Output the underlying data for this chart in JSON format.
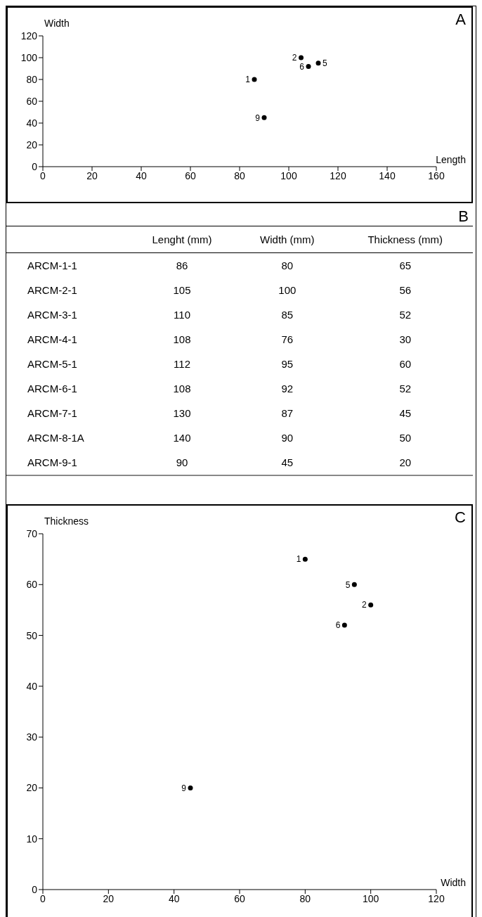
{
  "chart_data": [
    {
      "type": "scatter",
      "xlabel": "Length",
      "ylabel": "Width",
      "x": [
        86,
        105,
        112,
        108,
        90
      ],
      "values": [
        80,
        100,
        95,
        92,
        45
      ],
      "annotations": [
        "A",
        {
          "text": "1",
          "x": 86,
          "y": 80
        },
        {
          "text": "2",
          "x": 105,
          "y": 100
        },
        {
          "text": "5",
          "x": 112,
          "y": 95
        },
        {
          "text": "6",
          "x": 108,
          "y": 92
        },
        {
          "text": "9",
          "x": 90,
          "y": 45
        }
      ],
      "color": "#000000",
      "marker": "circle",
      "xlim": [
        0,
        160
      ],
      "xticks": [
        0,
        20,
        40,
        60,
        80,
        100,
        120,
        140,
        160
      ],
      "ylim": [
        0,
        120
      ],
      "yticks": [
        0,
        20,
        40,
        60,
        80,
        100,
        120
      ],
      "grid": false,
      "legend": false
    },
    {
      "type": "other",
      "title": "B",
      "categories": [
        "ARCM-1-1",
        "ARCM-2-1",
        "ARCM-3-1",
        "ARCM-4-1",
        "ARCM-5-1",
        "ARCM-6-1",
        "ARCM-7-1",
        "ARCM-8-1A",
        "ARCM-9-1"
      ],
      "data_labels": true,
      "series": [
        {
          "name": "Lenght (mm)",
          "values": [
            86,
            105,
            110,
            108,
            112,
            108,
            130,
            140,
            90
          ]
        },
        {
          "name": "Width (mm)",
          "values": [
            80,
            100,
            85,
            76,
            95,
            92,
            87,
            90,
            45
          ]
        },
        {
          "name": "Thickness (mm)",
          "values": [
            65,
            56,
            52,
            30,
            60,
            52,
            45,
            50,
            20
          ]
        }
      ]
    },
    {
      "type": "scatter",
      "xlabel": "Width",
      "ylabel": "Thickness",
      "x": [
        80,
        100,
        95,
        92,
        45
      ],
      "values": [
        65,
        56,
        60,
        52,
        20
      ],
      "annotations": [
        "C",
        {
          "text": "1",
          "x": 80,
          "y": 65
        },
        {
          "text": "2",
          "x": 100,
          "y": 56
        },
        {
          "text": "5",
          "x": 95,
          "y": 60
        },
        {
          "text": "6",
          "x": 92,
          "y": 52
        },
        {
          "text": "9",
          "x": 45,
          "y": 20
        }
      ],
      "color": "#000000",
      "marker": "circle",
      "xlim": [
        0,
        120
      ],
      "xticks": [
        0,
        20,
        40,
        60,
        80,
        100,
        120
      ],
      "ylim": [
        0,
        70
      ],
      "yticks": [
        0,
        10,
        20,
        30,
        40,
        50,
        60,
        70
      ],
      "grid": false,
      "legend": false
    }
  ]
}
